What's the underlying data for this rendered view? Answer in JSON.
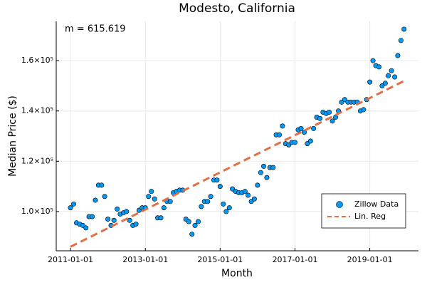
{
  "chart_data": {
    "type": "scatter",
    "title": "Modesto, California",
    "xlabel": "Month",
    "ylabel": "Median Price ($)",
    "annotation": "m = 615.619",
    "x": [
      "2011-01-01",
      "2011-02-01",
      "2011-03-01",
      "2011-04-01",
      "2011-05-01",
      "2011-06-01",
      "2011-07-01",
      "2011-08-01",
      "2011-09-01",
      "2011-10-01",
      "2011-11-01",
      "2011-12-01",
      "2012-01-01",
      "2012-02-01",
      "2012-03-01",
      "2012-04-01",
      "2012-05-01",
      "2012-06-01",
      "2012-07-01",
      "2012-08-01",
      "2012-09-01",
      "2012-10-01",
      "2012-11-01",
      "2012-12-01",
      "2013-01-01",
      "2013-02-01",
      "2013-03-01",
      "2013-04-01",
      "2013-05-01",
      "2013-06-01",
      "2013-07-01",
      "2013-08-01",
      "2013-09-01",
      "2013-10-01",
      "2013-11-01",
      "2013-12-01",
      "2014-01-01",
      "2014-02-01",
      "2014-03-01",
      "2014-04-01",
      "2014-05-01",
      "2014-06-01",
      "2014-07-01",
      "2014-08-01",
      "2014-09-01",
      "2014-10-01",
      "2014-11-01",
      "2014-12-01",
      "2015-01-01",
      "2015-02-01",
      "2015-03-01",
      "2015-04-01",
      "2015-05-01",
      "2015-06-01",
      "2015-07-01",
      "2015-08-01",
      "2015-09-01",
      "2015-10-01",
      "2015-11-01",
      "2015-12-01",
      "2016-01-01",
      "2016-02-01",
      "2016-03-01",
      "2016-04-01",
      "2016-05-01",
      "2016-06-01",
      "2016-07-01",
      "2016-08-01",
      "2016-09-01",
      "2016-10-01",
      "2016-11-01",
      "2016-12-01",
      "2017-01-01",
      "2017-02-01",
      "2017-03-01",
      "2017-04-01",
      "2017-05-01",
      "2017-06-01",
      "2017-07-01",
      "2017-08-01",
      "2017-09-01",
      "2017-10-01",
      "2017-11-01",
      "2017-12-01",
      "2018-01-01",
      "2018-02-01",
      "2018-03-01",
      "2018-04-01",
      "2018-05-01",
      "2018-06-01",
      "2018-07-01",
      "2018-08-01",
      "2018-09-01",
      "2018-10-01",
      "2018-11-01",
      "2018-12-01",
      "2019-01-01",
      "2019-02-01",
      "2019-03-01",
      "2019-04-01",
      "2019-05-01",
      "2019-06-01",
      "2019-07-01",
      "2019-08-01",
      "2019-09-01",
      "2019-10-01",
      "2019-11-01",
      "2019-12-01"
    ],
    "series": [
      {
        "name": "Zillow Data",
        "color": "#009af9",
        "values": [
          101500,
          103000,
          95500,
          95000,
          94500,
          93500,
          98000,
          98000,
          104500,
          110500,
          110500,
          106000,
          97000,
          94500,
          96500,
          101000,
          99000,
          99500,
          100000,
          96500,
          94500,
          95000,
          100500,
          101500,
          101500,
          106000,
          108000,
          105000,
          97500,
          97500,
          101500,
          104000,
          104000,
          107500,
          108000,
          108500,
          108500,
          97000,
          96000,
          91000,
          94500,
          96000,
          102000,
          104000,
          104000,
          106000,
          112500,
          112500,
          110000,
          103000,
          100000,
          101500,
          109000,
          108000,
          107500,
          107500,
          108000,
          106500,
          104000,
          105000,
          110500,
          115500,
          118000,
          113500,
          117500,
          117500,
          130500,
          130500,
          134000,
          127000,
          126500,
          127500,
          127500,
          132500,
          133000,
          131500,
          127000,
          128000,
          133000,
          137500,
          137000,
          139500,
          139000,
          139500,
          136000,
          137500,
          140000,
          143500,
          144500,
          143500,
          143500,
          143500,
          143500,
          140000,
          140500,
          144500,
          151500,
          160000,
          158000,
          157500,
          150000,
          151000,
          154000,
          156000,
          153500,
          162000,
          168000,
          172500
        ]
      },
      {
        "name": "Lin. Reg",
        "color": "#e26f46",
        "x": [
          "2011-01-01",
          "2019-12-01"
        ],
        "values": [
          86000,
          151900
        ]
      }
    ],
    "xlim": [
      "2010-08-15",
      "2020-04-20"
    ],
    "xticks": [
      "2011-01-01",
      "2013-01-01",
      "2015-01-01",
      "2017-01-01",
      "2019-01-01"
    ],
    "ylim": [
      84400,
      175600
    ],
    "yticks": [
      {
        "value": 100000,
        "label": "1.0×10⁵"
      },
      {
        "value": 120000,
        "label": "1.2×10⁵"
      },
      {
        "value": 140000,
        "label": "1.4×10⁵"
      },
      {
        "value": 160000,
        "label": "1.6×10⁵"
      }
    ],
    "grid": true,
    "legend": "bottom-right"
  }
}
